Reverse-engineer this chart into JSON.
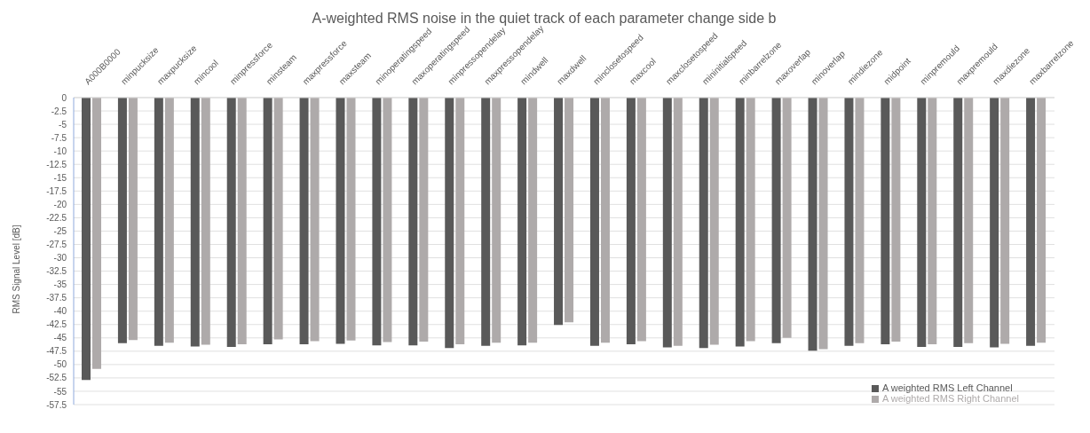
{
  "chart_data": {
    "type": "bar",
    "title": "A-weighted RMS noise in the quiet track of each parameter change side b",
    "ylabel": "RMS Signal Level [dB]",
    "categories": [
      "A000B0000",
      "minpucksize",
      "maxpucksize",
      "mincool",
      "minpressforce",
      "minsteam",
      "maxpressforce",
      "maxsteam",
      "minoperatingspeed",
      "maxoperatingspeed",
      "minpressopendelay",
      "maxpressopendelay",
      "mindwell",
      "maxdwell",
      "minclosetospeed",
      "maxcool",
      "maxclosetospeed",
      "mininitialspeed",
      "minbarrelzone",
      "maxoverlap",
      "minoverlap",
      "mindiezone",
      "midpoint",
      "minpremould",
      "maxpremould",
      "maxdiezone",
      "maxbarrelzone"
    ],
    "series": [
      {
        "name": "A weighted RMS Left Channel",
        "color": "#595959",
        "values": [
          -52.9,
          -46.0,
          -46.5,
          -46.6,
          -46.7,
          -46.2,
          -46.2,
          -46.1,
          -46.4,
          -46.4,
          -46.9,
          -46.5,
          -46.4,
          -42.6,
          -46.5,
          -46.2,
          -46.8,
          -46.9,
          -46.6,
          -46.0,
          -47.4,
          -46.5,
          -46.2,
          -46.7,
          -46.7,
          -46.8,
          -46.5
        ]
      },
      {
        "name": "A weighted RMS Right Channel",
        "color": "#aeaaaa",
        "values": [
          -50.8,
          -45.4,
          -45.9,
          -46.3,
          -46.2,
          -45.3,
          -45.6,
          -45.5,
          -45.8,
          -45.7,
          -46.2,
          -45.9,
          -45.9,
          -42.1,
          -45.9,
          -45.6,
          -46.5,
          -46.3,
          -45.6,
          -45.0,
          -47.1,
          -46.0,
          -45.7,
          -46.2,
          -46.0,
          -46.1,
          -45.9
        ]
      }
    ],
    "ylim": [
      -57.5,
      0
    ],
    "yticks": [
      0,
      -2.5,
      -5,
      -7.5,
      -10,
      -12.5,
      -15,
      -17.5,
      -20,
      -22.5,
      -25,
      -27.5,
      -30,
      -32.5,
      -35,
      -37.5,
      -40,
      -42.5,
      -45,
      -47.5,
      -50,
      -52.5,
      -55,
      -57.5
    ],
    "grid": "y",
    "legend": "bottom right"
  }
}
